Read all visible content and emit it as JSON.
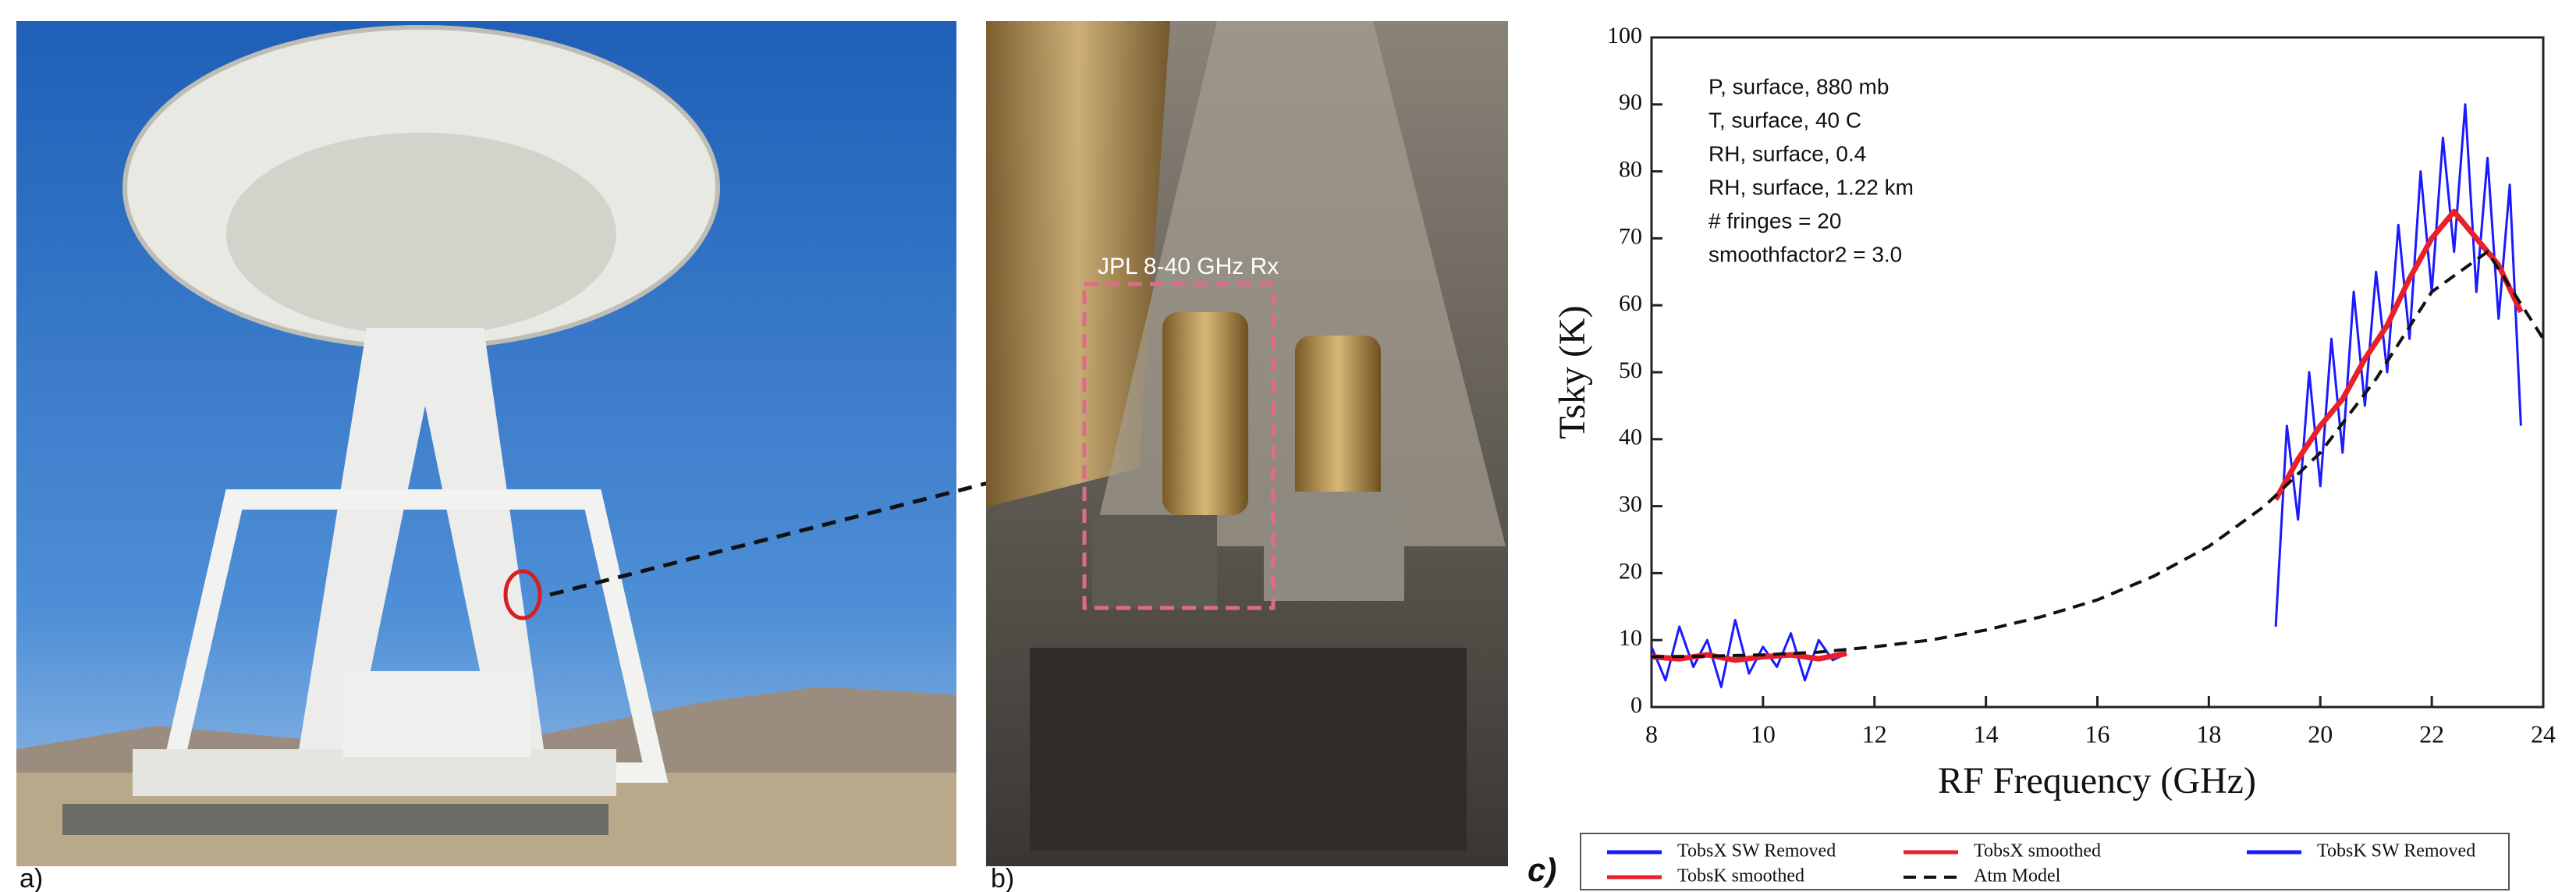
{
  "panel_labels": [
    "a)",
    "b)",
    "c)"
  ],
  "photo_label": "JPL 8-40 GHz Rx",
  "chart_data": {
    "type": "line",
    "xlabel": "RF Frequency (GHz)",
    "ylabel": "Tsky (K)",
    "annotations": [
      "P, surface, 880 mb",
      "T, surface, 40 C",
      "RH, surface, 0.4",
      "RH, surface, 1.22 km",
      "# fringes = 20",
      "smoothfactor2 = 3.0"
    ],
    "xlim": [
      8,
      24
    ],
    "xticks": [
      8,
      10,
      12,
      14,
      16,
      18,
      20,
      22,
      24
    ],
    "ylim": [
      0,
      100
    ],
    "yticks": [
      0,
      10,
      20,
      30,
      40,
      50,
      60,
      70,
      80,
      90,
      100
    ],
    "grid": false,
    "series": [
      {
        "name": "TobsX SW Removed",
        "color": "#1a1aff",
        "style": "solid",
        "x": [
          8,
          8.25,
          8.5,
          8.75,
          9,
          9.25,
          9.5,
          9.75,
          10,
          10.25,
          10.5,
          10.75,
          11,
          11.25,
          11.5
        ],
        "values": [
          9,
          4,
          12,
          6,
          10,
          3,
          13,
          5,
          9,
          6,
          11,
          4,
          10,
          7,
          8
        ]
      },
      {
        "name": "TobsX smoothed",
        "color": "#e8202a",
        "style": "solid",
        "x": [
          8,
          8.5,
          9,
          9.5,
          10,
          10.5,
          11,
          11.5
        ],
        "values": [
          7.5,
          7.2,
          7.8,
          7,
          7.5,
          7.8,
          7.2,
          8
        ]
      },
      {
        "name": "TobsK SW Removed",
        "color": "#1a1aff",
        "style": "solid",
        "x": [
          19.2,
          19.4,
          19.6,
          19.8,
          20,
          20.2,
          20.4,
          20.6,
          20.8,
          21,
          21.2,
          21.4,
          21.6,
          21.8,
          22,
          22.2,
          22.4,
          22.6,
          22.8,
          23,
          23.2,
          23.4,
          23.6
        ],
        "values": [
          12,
          42,
          28,
          50,
          33,
          55,
          38,
          62,
          45,
          65,
          50,
          72,
          55,
          80,
          62,
          85,
          68,
          90,
          62,
          82,
          58,
          78,
          42
        ]
      },
      {
        "name": "TobsK smoothed",
        "color": "#e8202a",
        "style": "solid",
        "x": [
          19.2,
          19.6,
          20,
          20.4,
          20.8,
          21.2,
          21.6,
          22,
          22.4,
          22.8,
          23.2,
          23.6
        ],
        "values": [
          31,
          37,
          42,
          46,
          52,
          57,
          64,
          70,
          74,
          70,
          66,
          59
        ]
      },
      {
        "name": "Atm Model",
        "color": "#111111",
        "style": "dashed",
        "x": [
          8,
          9,
          10,
          11,
          12,
          13,
          14,
          15,
          16,
          17,
          18,
          19,
          20,
          21,
          22,
          23,
          24
        ],
        "values": [
          7.5,
          7.6,
          7.8,
          8.2,
          9,
          10,
          11.5,
          13.5,
          16,
          19.5,
          24,
          30,
          38,
          49,
          62,
          68,
          55
        ]
      }
    ]
  }
}
